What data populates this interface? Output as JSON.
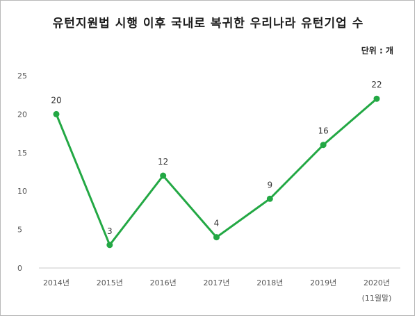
{
  "header": {
    "title": "유턴지원법 시행 이후 국내로 복귀한 우리나라 유턴기업 수",
    "unit": "단위 : 개"
  },
  "chart_data": {
    "type": "line",
    "categories": [
      "2014년",
      "2015년",
      "2016년",
      "2017년",
      "2018년",
      "2019년",
      "2020년"
    ],
    "category_note": "(11월말)",
    "series": [
      {
        "values": [
          20,
          3,
          12,
          4,
          9,
          16,
          22
        ]
      }
    ],
    "yticks": [
      0,
      5,
      10,
      15,
      20,
      25
    ],
    "ylim": [
      0,
      25
    ],
    "grid": false,
    "color": "#23a844"
  }
}
